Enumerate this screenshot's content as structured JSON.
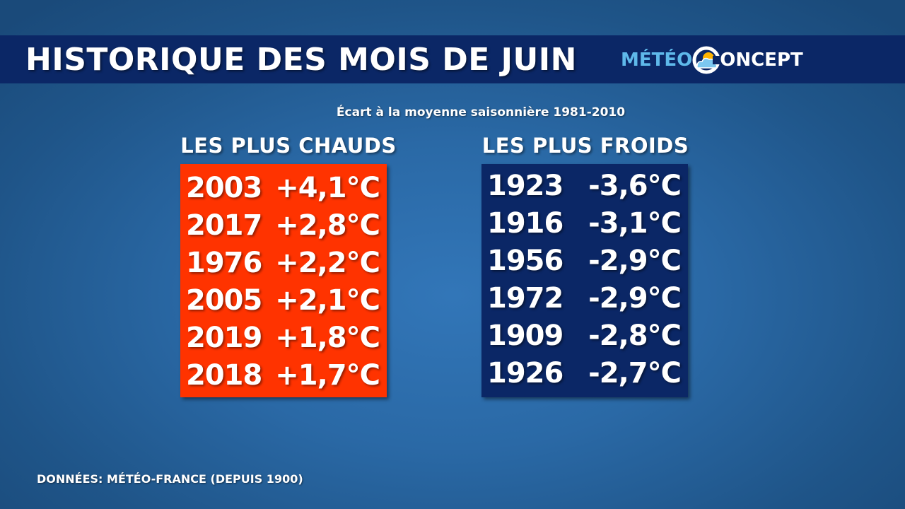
{
  "header": {
    "title": "HISTORIQUE DES MOIS DE JUIN",
    "logo": {
      "left_text": "MÉTÉO",
      "right_text": "ONCEPT"
    }
  },
  "subtitle": "Écart à la moyenne saisonnière 1981-2010",
  "hottest": {
    "heading": "LES PLUS CHAUDS",
    "rows": [
      {
        "year": "2003",
        "value": "+4,1°C"
      },
      {
        "year": "2017",
        "value": "+2,8°C"
      },
      {
        "year": "1976",
        "value": "+2,2°C"
      },
      {
        "year": "2005",
        "value": "+2,1°C"
      },
      {
        "year": "2019",
        "value": "+1,8°C"
      },
      {
        "year": "2018",
        "value": "+1,7°C"
      }
    ]
  },
  "coldest": {
    "heading": "LES PLUS FROIDS",
    "rows": [
      {
        "year": "1923",
        "value": "-3,6°C"
      },
      {
        "year": "1916",
        "value": "-3,1°C"
      },
      {
        "year": "1956",
        "value": "-2,9°C"
      },
      {
        "year": "1972",
        "value": "-2,9°C"
      },
      {
        "year": "1909",
        "value": "-2,8°C"
      },
      {
        "year": "1926",
        "value": "-2,7°C"
      }
    ]
  },
  "source": "DONNÉES: MÉTÉO-FRANCE (DEPUIS 1900)",
  "colors": {
    "title_bar": "#0b2766",
    "hot_panel": "#ff3300",
    "cold_panel": "#0b2766",
    "logo_accent": "#5fb9ea"
  }
}
